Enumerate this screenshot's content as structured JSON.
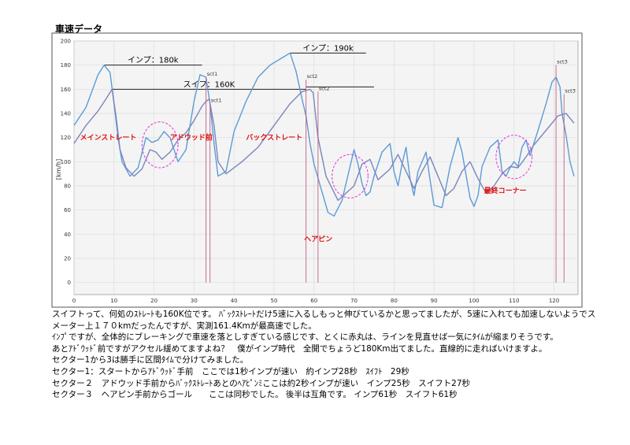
{
  "page": {
    "title": "車速データ"
  },
  "chart_data": {
    "type": "line",
    "xlim": [
      0,
      126
    ],
    "ylim": [
      -10,
      200
    ],
    "xticks": [
      0,
      10,
      20,
      30,
      40,
      50,
      60,
      70,
      80,
      90,
      100,
      110,
      120
    ],
    "yticks": [
      0,
      20,
      40,
      60,
      80,
      100,
      120,
      140,
      160,
      180,
      200
    ],
    "ylabel": "[km/h]",
    "grid": true,
    "series": [
      {
        "color": "#5b9bd5",
        "x": [
          0,
          3,
          6,
          7.5,
          9,
          10,
          11,
          12,
          14,
          16,
          18,
          19.5,
          21,
          22.5,
          24,
          26,
          28,
          30,
          31.5,
          33,
          34,
          35,
          36,
          38,
          40,
          43,
          46,
          49,
          52,
          54,
          55.5,
          57,
          58,
          59,
          60,
          62,
          63.5,
          65,
          67,
          69,
          70,
          71,
          72,
          73,
          74,
          75,
          77,
          79,
          80,
          81,
          82,
          83,
          84,
          85,
          86,
          88,
          89,
          90,
          92,
          94,
          96,
          97,
          99,
          100,
          101,
          102,
          104,
          106,
          107,
          108,
          109,
          110,
          111,
          112,
          113,
          114,
          116,
          118,
          119.5,
          120.5,
          121.5,
          122,
          123,
          124,
          125
        ],
        "y": [
          130,
          145,
          172,
          180,
          174,
          148,
          120,
          100,
          88,
          95,
          120,
          116,
          118,
          125,
          120,
          100,
          110,
          150,
          172,
          170,
          148,
          115,
          88,
          92,
          125,
          150,
          170,
          180,
          186,
          190,
          175,
          152,
          138,
          115,
          98,
          75,
          58,
          55,
          68,
          96,
          110,
          98,
          82,
          72,
          75,
          88,
          108,
          115,
          92,
          80,
          98,
          112,
          86,
          72,
          92,
          108,
          85,
          64,
          62,
          96,
          120,
          108,
          70,
          63,
          72,
          96,
          112,
          118,
          92,
          88,
          95,
          100,
          96,
          112,
          118,
          105,
          126,
          148,
          166,
          170,
          162,
          140,
          122,
          100,
          88
        ]
      },
      {
        "color": "#7b86bd",
        "x": [
          0,
          3,
          6,
          8,
          9.5,
          10.5,
          11.5,
          13,
          15,
          17,
          19,
          20.5,
          22,
          24,
          26,
          28,
          30,
          32,
          33,
          33.8,
          35,
          36,
          38,
          42,
          46,
          50,
          54,
          57,
          59,
          59.8,
          61,
          63,
          66,
          70,
          72,
          74,
          76,
          79,
          81,
          83,
          85,
          87,
          89,
          91,
          93,
          95,
          97,
          99,
          101,
          103,
          105,
          107,
          109,
          111,
          113,
          115,
          118,
          121,
          123,
          125
        ],
        "y": [
          115,
          130,
          142,
          152,
          160,
          138,
          110,
          95,
          88,
          94,
          110,
          108,
          102,
          108,
          118,
          124,
          134,
          146,
          150,
          152,
          130,
          100,
          90,
          100,
          112,
          130,
          148,
          158,
          160,
          157,
          120,
          88,
          68,
          80,
          98,
          102,
          85,
          94,
          106,
          92,
          78,
          92,
          104,
          88,
          72,
          78,
          92,
          100,
          86,
          74,
          80,
          90,
          96,
          95,
          104,
          114,
          126,
          138,
          140,
          132
        ]
      }
    ],
    "reference_lines": [
      {
        "label": "インプ：180k",
        "y": 180,
        "x_from": 7.5,
        "x_to": 32
      },
      {
        "label": "スイフ：160K",
        "y": 160,
        "x_from": 9.5,
        "x_to": 58
      },
      {
        "label": "インプ：190k",
        "y": 190,
        "x_from": 54,
        "x_to": 73
      },
      {
        "label": "",
        "y": 162,
        "x_from": 58,
        "x_to": 75
      }
    ],
    "markers": [
      {
        "label": "sct1",
        "x": 33,
        "y_top": 170,
        "y_bottom": 0
      },
      {
        "label": "sct1",
        "x": 34,
        "y_top": 148,
        "y_bottom": 0
      },
      {
        "label": "sct2",
        "x": 58,
        "y_top": 168,
        "y_bottom": 0
      },
      {
        "label": "sct2",
        "x": 61,
        "y_top": 158,
        "y_bottom": 0
      },
      {
        "label": "sct3",
        "x": 120.5,
        "y_top": 180,
        "y_bottom": 0
      },
      {
        "label": "sct3",
        "x": 122.5,
        "y_top": 156,
        "y_bottom": 0
      }
    ],
    "annotations": [
      {
        "label": "メインストレート",
        "x": 1.5,
        "y": 118
      },
      {
        "label": "アドウッド前",
        "x": 24,
        "y": 118
      },
      {
        "label": "バックストレート",
        "x": 43,
        "y": 118
      },
      {
        "label": "ヘアピン",
        "x": 57.5,
        "y": 34
      },
      {
        "label": "最終コーナー",
        "x": 102.5,
        "y": 74
      }
    ],
    "circles": [
      {
        "cx": 21.5,
        "cy": 114,
        "rx": 4.5,
        "ry": 19
      },
      {
        "cx": 69,
        "cy": 88,
        "rx": 4.5,
        "ry": 18
      },
      {
        "cx": 110,
        "cy": 104,
        "rx": 4.5,
        "ry": 18
      }
    ]
  },
  "notes": [
    "スイフトって、何処のｽﾄﾚｰﾄも160K位です。 ﾊﾞｯｸｽﾄﾚｰﾄだけ5速に入るしもっと伸びているかと思ってましたが、5速に入れても加速しないようでス",
    "メーター上１７０kmだったんですが、実測161.4Kmが最高速でした。",
    "ｲﾝﾌﾟですが、全体的にブレーキングで車速を落としすぎている感じです、とくに赤丸は、ラインを見直せば一気にﾀｲﾑが縮まりそうです。",
    "あとｱﾄﾞｳｯﾄﾞ前ですがアクセル緩めてますよね？　僕がインプ時代　全開でちょうど180Km出てました。直線的に走ればいけますよ。",
    "セクター1から3は勝手に区間ﾀｲﾑで分けてみました。",
    "セクター1：スタートからｱﾄﾞｳｯﾄﾞ手前　ここでは1秒インプが速い　約インプ28秒　ｽｲﾌﾄ　29秒",
    "セクター２　アドウッド手前からﾊﾞｯｸｽﾄﾚｰﾄあとのﾍｱﾋﾟﾝﾐここは約2秒インプが速い　インプ25秒　スイフト27秒",
    "セクター３　ヘアピン手前からゴール　　ここは同秒でした。 後半は互角です。 インプ61秒　スイフト61秒"
  ]
}
